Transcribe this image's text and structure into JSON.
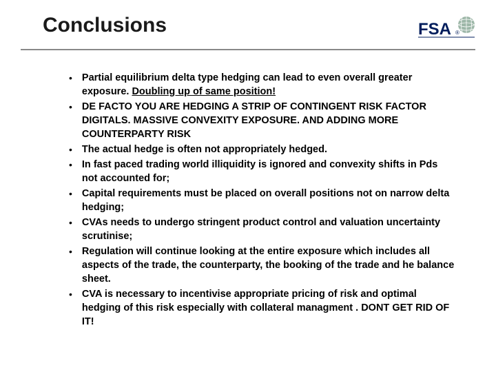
{
  "title": "Conclusions",
  "logo": {
    "text": "FSA",
    "text_color": "#001d5c",
    "globe_color": "#9db7a8"
  },
  "divider_color": "#888888",
  "bullets": [
    {
      "pre": "Partial equilibrium delta type hedging can lead to even overall greater exposure. ",
      "underline": "Doubling up of same position!",
      "post": ""
    },
    {
      "pre": "DE FACTO YOU ARE HEDGING A STRIP OF CONTINGENT RISK FACTOR DIGITALS. MASSIVE CONVEXITY EXPOSURE. AND ADDING MORE COUNTERPARTY RISK",
      "underline": "",
      "post": ""
    },
    {
      "pre": "The actual hedge is often not appropriately hedged.",
      "underline": "",
      "post": ""
    },
    {
      "pre": "In fast paced trading world illiquidity is ignored and convexity shifts in Pds not accounted for;",
      "underline": "",
      "post": ""
    },
    {
      "pre": "Capital requirements must be placed on overall positions not on narrow delta hedging;",
      "underline": "",
      "post": ""
    },
    {
      "pre": "CVAs needs to undergo stringent product control and valuation uncertainty scrutinise;",
      "underline": "",
      "post": ""
    },
    {
      "pre": "Regulation will continue looking at the entire exposure which includes all aspects of the trade, the counterparty, the booking of the trade and he balance sheet.",
      "underline": "",
      "post": ""
    },
    {
      "pre": "CVA is necessary to incentivise appropriate pricing of risk and optimal hedging of this risk especially with collateral managment . DONT GET RID OF IT!",
      "underline": "",
      "post": ""
    }
  ],
  "typography": {
    "title_fontsize": 30,
    "bullet_fontsize": 14.5,
    "font_family": "Arial",
    "bullet_weight": "bold"
  },
  "colors": {
    "background": "#ffffff",
    "title_text": "#1a1a1a",
    "body_text": "#000000"
  }
}
